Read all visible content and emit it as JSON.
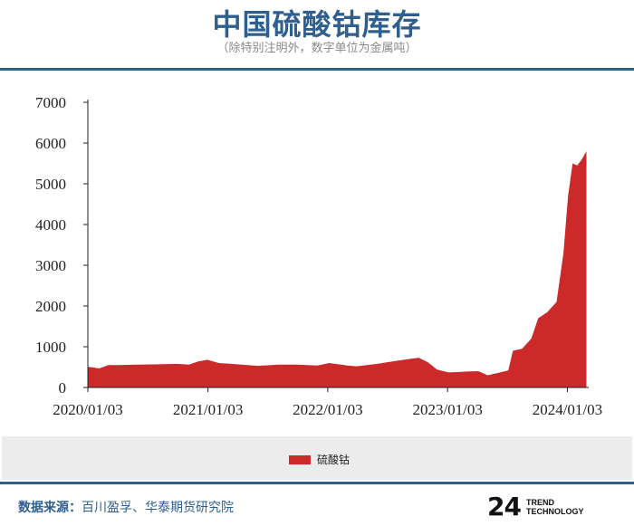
{
  "header": {
    "title": "中国硫酸钴库存",
    "subtitle": "（除特别注明外，数字单位为金属吨）"
  },
  "chart_data": {
    "type": "area",
    "color": "#cc2a2a",
    "series": [
      {
        "name": "硫酸钴",
        "points": [
          [
            "2020-01-03",
            510
          ],
          [
            "2020-02-07",
            470
          ],
          [
            "2020-03-06",
            550
          ],
          [
            "2020-04-03",
            550
          ],
          [
            "2020-06-05",
            560
          ],
          [
            "2020-08-07",
            570
          ],
          [
            "2020-10-02",
            580
          ],
          [
            "2020-11-06",
            560
          ],
          [
            "2020-12-04",
            640
          ],
          [
            "2021-01-01",
            680
          ],
          [
            "2021-02-05",
            600
          ],
          [
            "2021-04-02",
            570
          ],
          [
            "2021-06-04",
            530
          ],
          [
            "2021-08-06",
            560
          ],
          [
            "2021-10-01",
            560
          ],
          [
            "2021-12-03",
            540
          ],
          [
            "2022-01-07",
            600
          ],
          [
            "2022-03-04",
            540
          ],
          [
            "2022-04-01",
            520
          ],
          [
            "2022-06-03",
            580
          ],
          [
            "2022-08-05",
            660
          ],
          [
            "2022-10-07",
            730
          ],
          [
            "2022-11-04",
            620
          ],
          [
            "2022-12-02",
            440
          ],
          [
            "2023-01-06",
            370
          ],
          [
            "2023-03-03",
            390
          ],
          [
            "2023-04-07",
            400
          ],
          [
            "2023-05-05",
            300
          ],
          [
            "2023-06-02",
            350
          ],
          [
            "2023-07-07",
            420
          ],
          [
            "2023-07-21",
            900
          ],
          [
            "2023-08-18",
            950
          ],
          [
            "2023-09-15",
            1200
          ],
          [
            "2023-10-06",
            1700
          ],
          [
            "2023-11-03",
            1850
          ],
          [
            "2023-12-01",
            2100
          ],
          [
            "2023-12-22",
            3300
          ],
          [
            "2024-01-05",
            4700
          ],
          [
            "2024-01-19",
            5500
          ],
          [
            "2024-02-02",
            5450
          ],
          [
            "2024-02-16",
            5600
          ],
          [
            "2024-03-01",
            5800
          ]
        ]
      }
    ],
    "x_ticks": [
      "2020/01/03",
      "2021/01/03",
      "2022/01/03",
      "2023/01/03",
      "2024/01/03"
    ],
    "y_ticks": [
      "0",
      "1000",
      "2000",
      "3000",
      "4000",
      "5000",
      "6000",
      "7000"
    ],
    "ylim": [
      0,
      7000
    ],
    "xlim": [
      "2020-01-03",
      "2024-03-08"
    ],
    "legend": {
      "position": "bottom",
      "label": "硫酸钴"
    },
    "grid": false
  },
  "footer": {
    "source_label": "数据来源：",
    "source_text": "百川盈孚、华泰期货研究院",
    "logo_mark": "24",
    "logo_line1": "TREND",
    "logo_line2": "TECHNOLOGY"
  }
}
